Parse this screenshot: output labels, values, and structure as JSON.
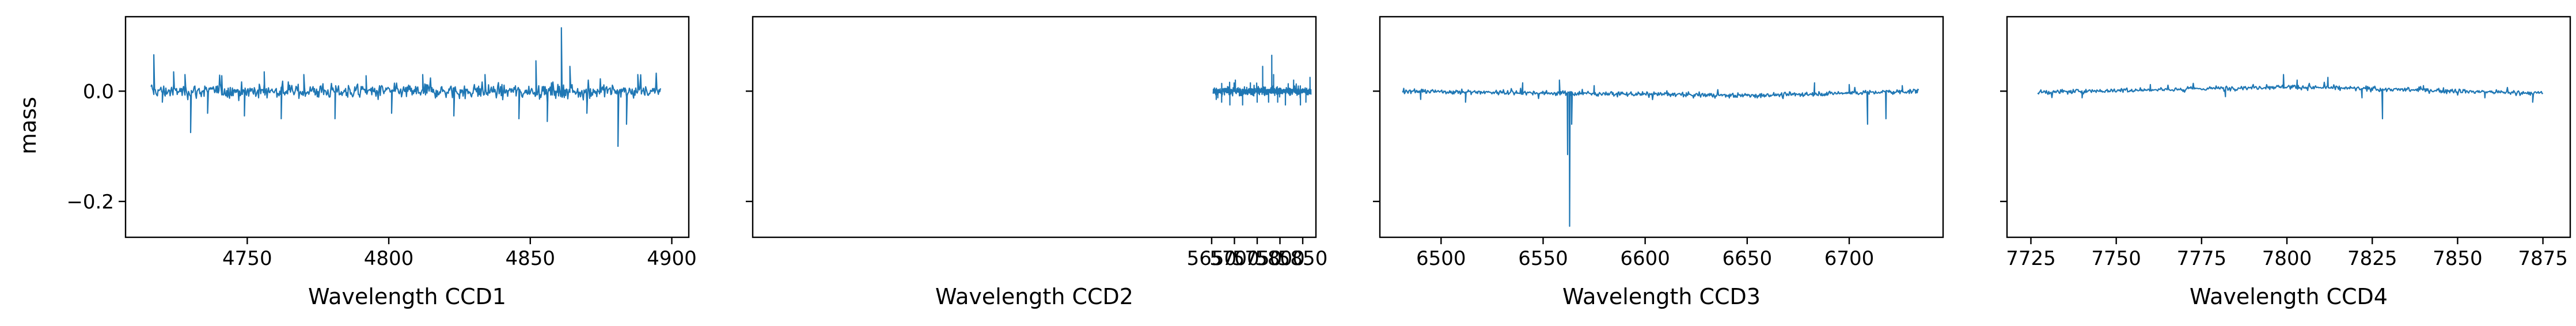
{
  "figure": {
    "ylabel": "mass"
  },
  "chart_data": [
    {
      "type": "line",
      "xlabel": "Wavelength CCD1",
      "ylabel": "mass",
      "xlim": [
        4707,
        4906
      ],
      "ylim": [
        -0.265,
        0.135
      ],
      "xticks": [
        4750,
        4800,
        4850,
        4900
      ],
      "yticks": [
        -0.2,
        0.0
      ],
      "ytick_labels": [
        "−0.2",
        "0.0"
      ],
      "series_color": "#1f77b4",
      "series": [
        {
          "x_range": [
            4716,
            4896
          ],
          "noise": 0.012,
          "points": 720,
          "spikes": [
            [
              4717,
              0.066
            ],
            [
              4720,
              -0.02
            ],
            [
              4724,
              0.035
            ],
            [
              4728,
              0.03
            ],
            [
              4730,
              -0.075
            ],
            [
              4736,
              -0.04
            ],
            [
              4741,
              0.028
            ],
            [
              4749,
              -0.045
            ],
            [
              4756,
              0.035
            ],
            [
              4762,
              -0.05
            ],
            [
              4770,
              0.03
            ],
            [
              4781,
              -0.05
            ],
            [
              4792,
              0.028
            ],
            [
              4801,
              -0.04
            ],
            [
              4812,
              0.03
            ],
            [
              4823,
              -0.045
            ],
            [
              4834,
              0.03
            ],
            [
              4846,
              -0.05
            ],
            [
              4852,
              0.055
            ],
            [
              4856,
              -0.055
            ],
            [
              4861,
              0.115
            ],
            [
              4864,
              0.045
            ],
            [
              4870,
              -0.04
            ],
            [
              4881,
              -0.1
            ],
            [
              4884,
              -0.06
            ],
            [
              4888,
              0.03
            ]
          ]
        }
      ]
    },
    {
      "type": "line",
      "xlabel": "Wavelength CCD2",
      "ylabel": "",
      "xlim": [
        4642,
        5879
      ],
      "xlim_note": "",
      "ylim": [
        -0.265,
        0.135
      ],
      "xticks": [
        5650,
        5700,
        5750,
        5800,
        5850
      ],
      "yticks": [
        -0.2,
        0.0
      ],
      "ytick_labels": [
        "",
        ""
      ],
      "series_color": "#1f77b4",
      "series": [
        {
          "x_range": [
            5653,
            5868
          ],
          "noise": 0.006,
          "points": 720,
          "spikes": [
            [
              5660,
              -0.015
            ],
            [
              5672,
              -0.02
            ],
            [
              5690,
              -0.025
            ],
            [
              5702,
              0.02
            ],
            [
              5718,
              -0.025
            ],
            [
              5735,
              0.015
            ],
            [
              5750,
              -0.02
            ],
            [
              5762,
              0.045
            ],
            [
              5775,
              -0.02
            ],
            [
              5782,
              0.065
            ],
            [
              5786,
              0.03
            ],
            [
              5795,
              -0.02
            ],
            [
              5812,
              -0.025
            ],
            [
              5830,
              0.02
            ],
            [
              5845,
              -0.025
            ],
            [
              5857,
              -0.02
            ],
            [
              5866,
              0.025
            ]
          ]
        }
      ]
    },
    {
      "type": "line",
      "xlabel": "Wavelength CCD3",
      "ylabel": "",
      "xlim": [
        6470,
        6746
      ],
      "ylim": [
        -0.265,
        0.135
      ],
      "xticks": [
        6500,
        6550,
        6600,
        6650,
        6700
      ],
      "yticks": [
        -0.2,
        0.0
      ],
      "ytick_labels": [
        "",
        ""
      ],
      "series_color": "#1f77b4",
      "series": [
        {
          "x_range": [
            6481,
            6734
          ],
          "noise": 0.004,
          "points": 720,
          "baseline": [
            [
              6481,
              0.0
            ],
            [
              6650,
              -0.008
            ],
            [
              6734,
              0.0
            ]
          ],
          "spikes": [
            [
              6490,
              -0.015
            ],
            [
              6512,
              -0.02
            ],
            [
              6540,
              0.015
            ],
            [
              6558,
              0.02
            ],
            [
              6562,
              -0.115
            ],
            [
              6563,
              -0.245
            ],
            [
              6564,
              -0.06
            ],
            [
              6575,
              0.01
            ],
            [
              6620,
              -0.01
            ],
            [
              6683,
              0.015
            ],
            [
              6700,
              0.012
            ],
            [
              6709,
              -0.06
            ],
            [
              6718,
              -0.05
            ],
            [
              6726,
              0.01
            ]
          ]
        }
      ]
    },
    {
      "type": "line",
      "xlabel": "Wavelength CCD4",
      "ylabel": "",
      "xlim": [
        7718,
        7883
      ],
      "ylim": [
        -0.265,
        0.135
      ],
      "xticks": [
        7725,
        7750,
        7775,
        7800,
        7825,
        7850,
        7875
      ],
      "yticks": [
        -0.2,
        0.0
      ],
      "ytick_labels": [
        "",
        ""
      ],
      "series_color": "#1f77b4",
      "series": [
        {
          "x_range": [
            7727,
            7875
          ],
          "noise": 0.004,
          "points": 640,
          "baseline": [
            [
              7727,
              -0.002
            ],
            [
              7800,
              0.008
            ],
            [
              7875,
              -0.004
            ]
          ],
          "spikes": [
            [
              7740,
              -0.012
            ],
            [
              7760,
              0.012
            ],
            [
              7782,
              -0.01
            ],
            [
              7799,
              0.03
            ],
            [
              7803,
              0.02
            ],
            [
              7812,
              0.025
            ],
            [
              7822,
              -0.012
            ],
            [
              7828,
              -0.05
            ],
            [
              7840,
              0.01
            ],
            [
              7858,
              -0.012
            ],
            [
              7872,
              -0.02
            ]
          ]
        }
      ]
    }
  ]
}
